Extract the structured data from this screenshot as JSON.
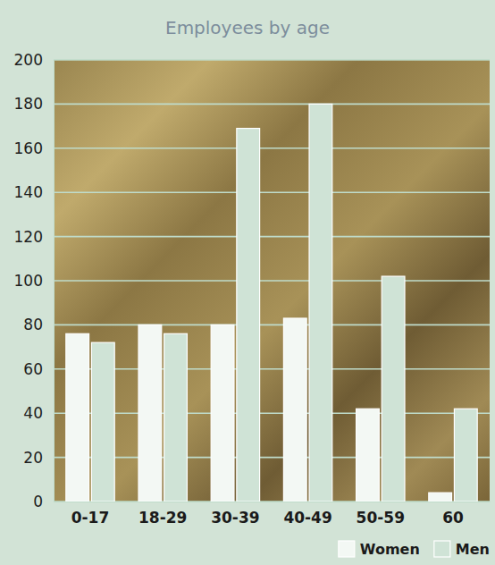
{
  "chart_data": {
    "type": "bar",
    "title": "Employees by age",
    "categories": [
      "0-17",
      "18-29",
      "30-39",
      "40-49",
      "50-59",
      "60"
    ],
    "series": [
      {
        "name": "Women",
        "color": "#f3f8f4",
        "values": [
          76,
          80,
          80,
          83,
          42,
          4
        ]
      },
      {
        "name": "Men",
        "color": "#cfe3d6",
        "values": [
          72,
          76,
          169,
          180,
          102,
          42
        ]
      }
    ],
    "ylim": [
      0,
      200
    ],
    "yticks": [
      0,
      20,
      40,
      60,
      80,
      100,
      120,
      140,
      160,
      180,
      200
    ],
    "grid": true,
    "legend": "bottom-right"
  }
}
